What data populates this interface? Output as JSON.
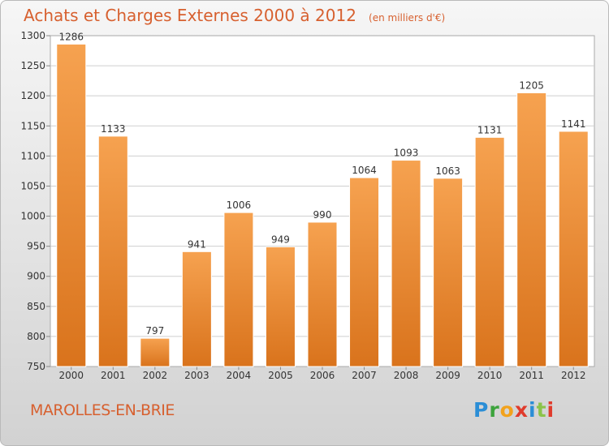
{
  "title": "Achats et Charges Externes 2000 à 2012",
  "unit": "(en milliers d'€)",
  "commune": "MAROLLES-EN-BRIE",
  "logo": {
    "letters": [
      "P",
      "r",
      "o",
      "x",
      "i",
      "t",
      "i"
    ],
    "colors": [
      "#2b8ed6",
      "#3ca33c",
      "#f2a21c",
      "#e03b2c",
      "#2b8ed6",
      "#8bc34a",
      "#e03b2c"
    ]
  },
  "chart_data": {
    "type": "bar",
    "categories": [
      "2000",
      "2001",
      "2002",
      "2003",
      "2004",
      "2005",
      "2006",
      "2007",
      "2008",
      "2009",
      "2010",
      "2011",
      "2012"
    ],
    "values": [
      1286,
      1133,
      797,
      941,
      1006,
      949,
      990,
      1064,
      1093,
      1063,
      1131,
      1205,
      1141
    ],
    "ylim": [
      750,
      1300
    ],
    "yticks": [
      750,
      800,
      850,
      900,
      950,
      1000,
      1050,
      1100,
      1150,
      1200,
      1250,
      1300
    ],
    "grid": true,
    "bar_color": "#f0913b"
  }
}
